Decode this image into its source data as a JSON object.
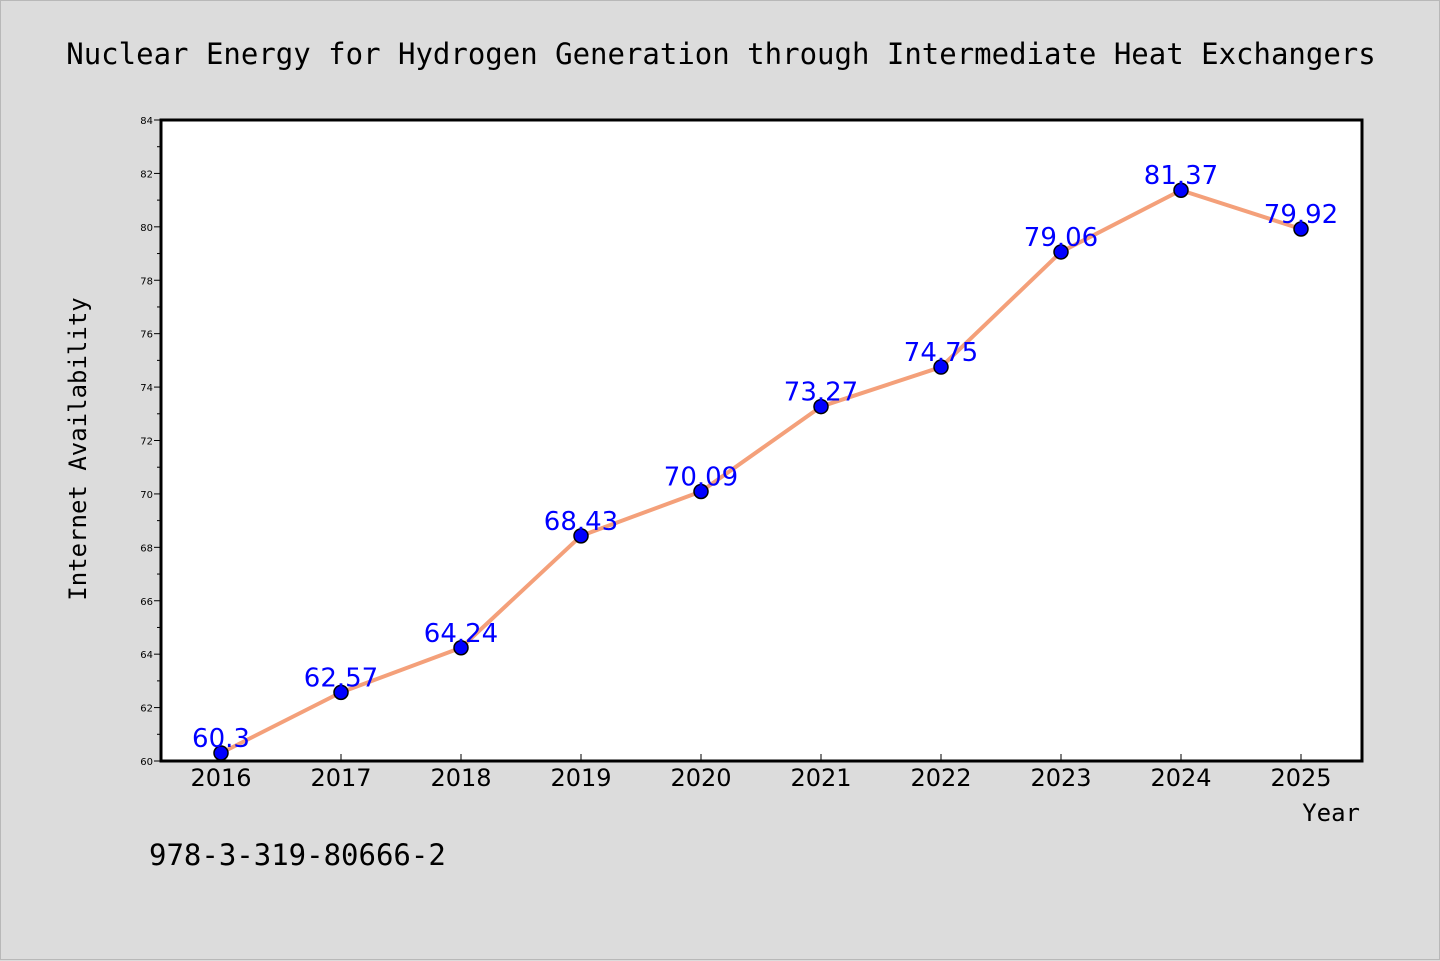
{
  "chart_data": {
    "type": "line",
    "title": "Nuclear Energy for Hydrogen Generation through Intermediate Heat Exchangers",
    "xlabel": "Year",
    "ylabel": "Internet Availability",
    "categories": [
      "2016",
      "2017",
      "2018",
      "2019",
      "2020",
      "2021",
      "2022",
      "2023",
      "2024",
      "2025"
    ],
    "series": [
      {
        "values": [
          60.3,
          62.57,
          64.24,
          68.43,
          70.09,
          73.27,
          74.75,
          79.06,
          81.37,
          79.92
        ],
        "labels": [
          "60.3",
          "62.57",
          "64.24",
          "68.43",
          "70.09",
          "73.27",
          "74.75",
          "79.06",
          "81.37",
          "79.92"
        ]
      }
    ],
    "ylim": [
      60,
      84
    ],
    "yticks": [
      "60",
      "62",
      "64",
      "66",
      "68",
      "70",
      "72",
      "74",
      "76",
      "78",
      "80",
      "82",
      "84"
    ],
    "grid": false,
    "legend": "none",
    "caption": "978-3-319-80666-2",
    "colors": {
      "line": "#f4a07a",
      "marker": "#0000ff",
      "data_label": "#0000ff",
      "plot_background": "#ffffff",
      "page_background": "#dcdcdc"
    }
  }
}
